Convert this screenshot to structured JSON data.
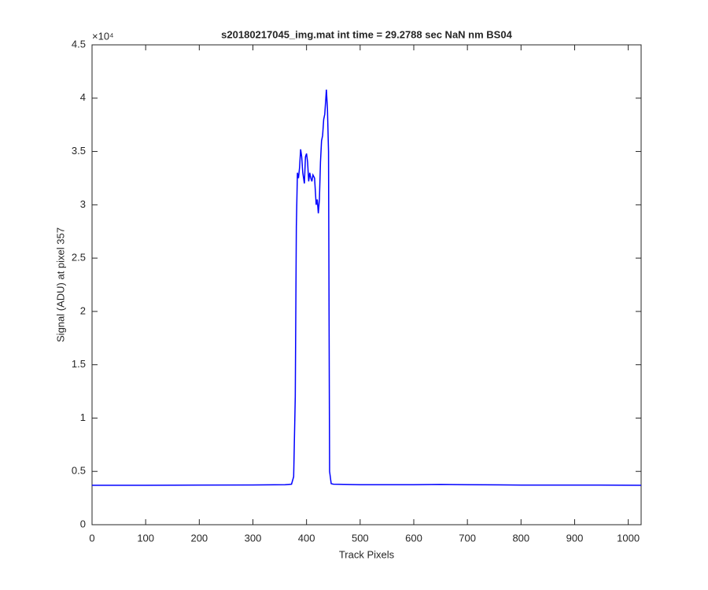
{
  "chart_data": {
    "type": "line",
    "title": "s20180217045_img.mat int time = 29.2788 sec  NaN nm BS04",
    "x_label": "Track Pixels",
    "y_label": "Signal (ADU) at pixel 357",
    "y_exponent_label": "×10⁴",
    "xlim": [
      0,
      1024
    ],
    "xticks": [
      0,
      100,
      200,
      300,
      400,
      500,
      600,
      700,
      800,
      900,
      1000
    ],
    "ylim": [
      0,
      4.5
    ],
    "yticks": [
      0,
      0.5,
      1,
      1.5,
      2,
      2.5,
      3,
      3.5,
      4,
      4.5
    ],
    "grid": false,
    "box": true,
    "x": [
      0,
      100,
      200,
      300,
      360,
      372,
      376,
      379,
      381,
      383,
      385,
      387,
      389,
      391,
      393,
      396,
      398,
      400,
      402,
      404,
      406,
      408,
      410,
      412,
      415,
      418,
      420,
      422,
      424,
      426,
      428,
      430,
      432,
      434,
      436,
      437,
      439,
      441,
      442,
      443,
      446,
      450,
      500,
      600,
      650,
      700,
      800,
      900,
      1024
    ],
    "series": [
      {
        "color": "#0000ff",
        "values": [
          0.37,
          0.37,
          0.372,
          0.373,
          0.375,
          0.38,
          0.45,
          1.2,
          2.8,
          3.3,
          3.25,
          3.35,
          3.52,
          3.45,
          3.3,
          3.2,
          3.45,
          3.48,
          3.4,
          3.22,
          3.3,
          3.25,
          3.22,
          3.28,
          3.25,
          3.0,
          3.05,
          2.92,
          3.05,
          3.4,
          3.6,
          3.65,
          3.8,
          3.85,
          4.0,
          4.08,
          3.9,
          3.5,
          2.0,
          0.5,
          0.385,
          0.38,
          0.375,
          0.375,
          0.378,
          0.375,
          0.372,
          0.372,
          0.37
        ]
      }
    ]
  }
}
